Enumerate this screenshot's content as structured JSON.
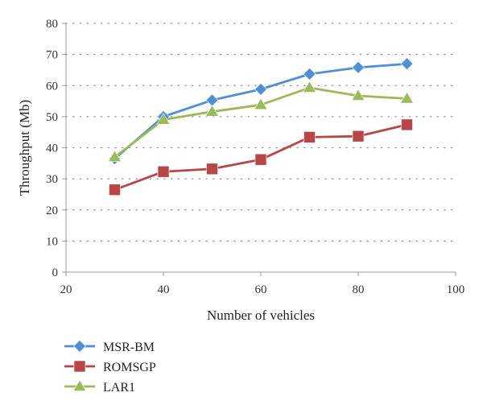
{
  "chart_data": {
    "type": "line",
    "xlabel": "Number of vehicles",
    "ylabel": "Throughput (Mb)",
    "xlim": [
      20,
      100
    ],
    "ylim": [
      0,
      80
    ],
    "xticks": [
      20,
      40,
      60,
      80,
      100
    ],
    "yticks": [
      0,
      10,
      20,
      30,
      40,
      50,
      60,
      70,
      80
    ],
    "grid": "horizontal dotted",
    "legend_position": "bottom-left",
    "x": [
      30,
      40,
      50,
      60,
      70,
      80,
      90
    ],
    "series": [
      {
        "name": "MSR-BM",
        "color": "#4f8fd6",
        "marker": "diamond",
        "values": [
          36.5,
          50,
          55.3,
          58.8,
          63.7,
          65.8,
          67
        ]
      },
      {
        "name": "ROMSGP",
        "color": "#b84646",
        "marker": "square",
        "values": [
          26.5,
          32.3,
          33.2,
          36.2,
          43.4,
          43.7,
          47.4
        ]
      },
      {
        "name": "LAR1",
        "color": "#9bbb59",
        "marker": "triangle",
        "values": [
          37,
          49,
          51.6,
          53.8,
          59.3,
          56.7,
          55.8
        ]
      }
    ]
  }
}
